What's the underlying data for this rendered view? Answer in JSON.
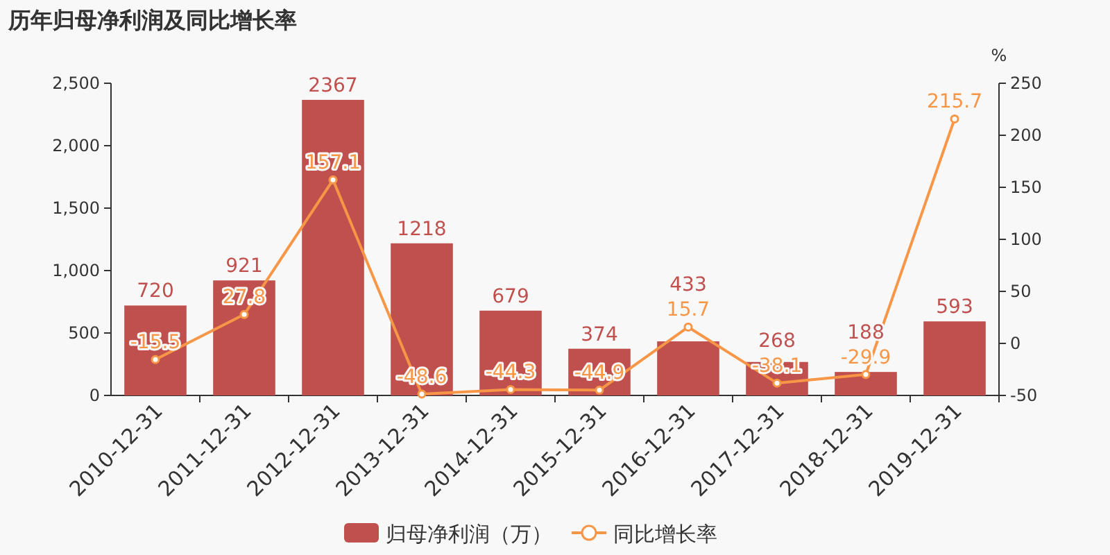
{
  "chart_data": {
    "type": "bar",
    "title": "历年归母净利润及同比增长率",
    "y2label": "%",
    "categories": [
      "2010-12-31",
      "2011-12-31",
      "2012-12-31",
      "2013-12-31",
      "2014-12-31",
      "2015-12-31",
      "2016-12-31",
      "2017-12-31",
      "2018-12-31",
      "2019-12-31"
    ],
    "series": [
      {
        "name": "归母净利润（万）",
        "color": "#c0504d",
        "values": [
          720,
          921,
          2367,
          1218,
          679,
          374,
          433,
          268,
          188,
          593
        ]
      },
      {
        "name": "同比增长率",
        "type": "line",
        "axis": "y2",
        "color": "#f79646",
        "marker": "circle",
        "values": [
          -15.5,
          27.8,
          157.1,
          -48.6,
          -44.3,
          -44.9,
          15.7,
          -38.1,
          -29.9,
          215.7
        ]
      }
    ],
    "ylim": [
      0,
      2500
    ],
    "yticks": [
      0,
      {
        "value": 500,
        "label": "500"
      },
      {
        "value": 1000,
        "label": "1,000"
      },
      {
        "value": 1500,
        "label": "1,500"
      },
      {
        "value": 2000,
        "label": "2,000"
      },
      {
        "value": 2500,
        "label": "2,500"
      }
    ],
    "y2lim": [
      -50,
      250
    ],
    "y2ticks": [
      -50,
      0,
      50,
      100,
      150,
      200,
      250
    ],
    "data_labels": true,
    "legend": "bottom",
    "grid": false
  }
}
